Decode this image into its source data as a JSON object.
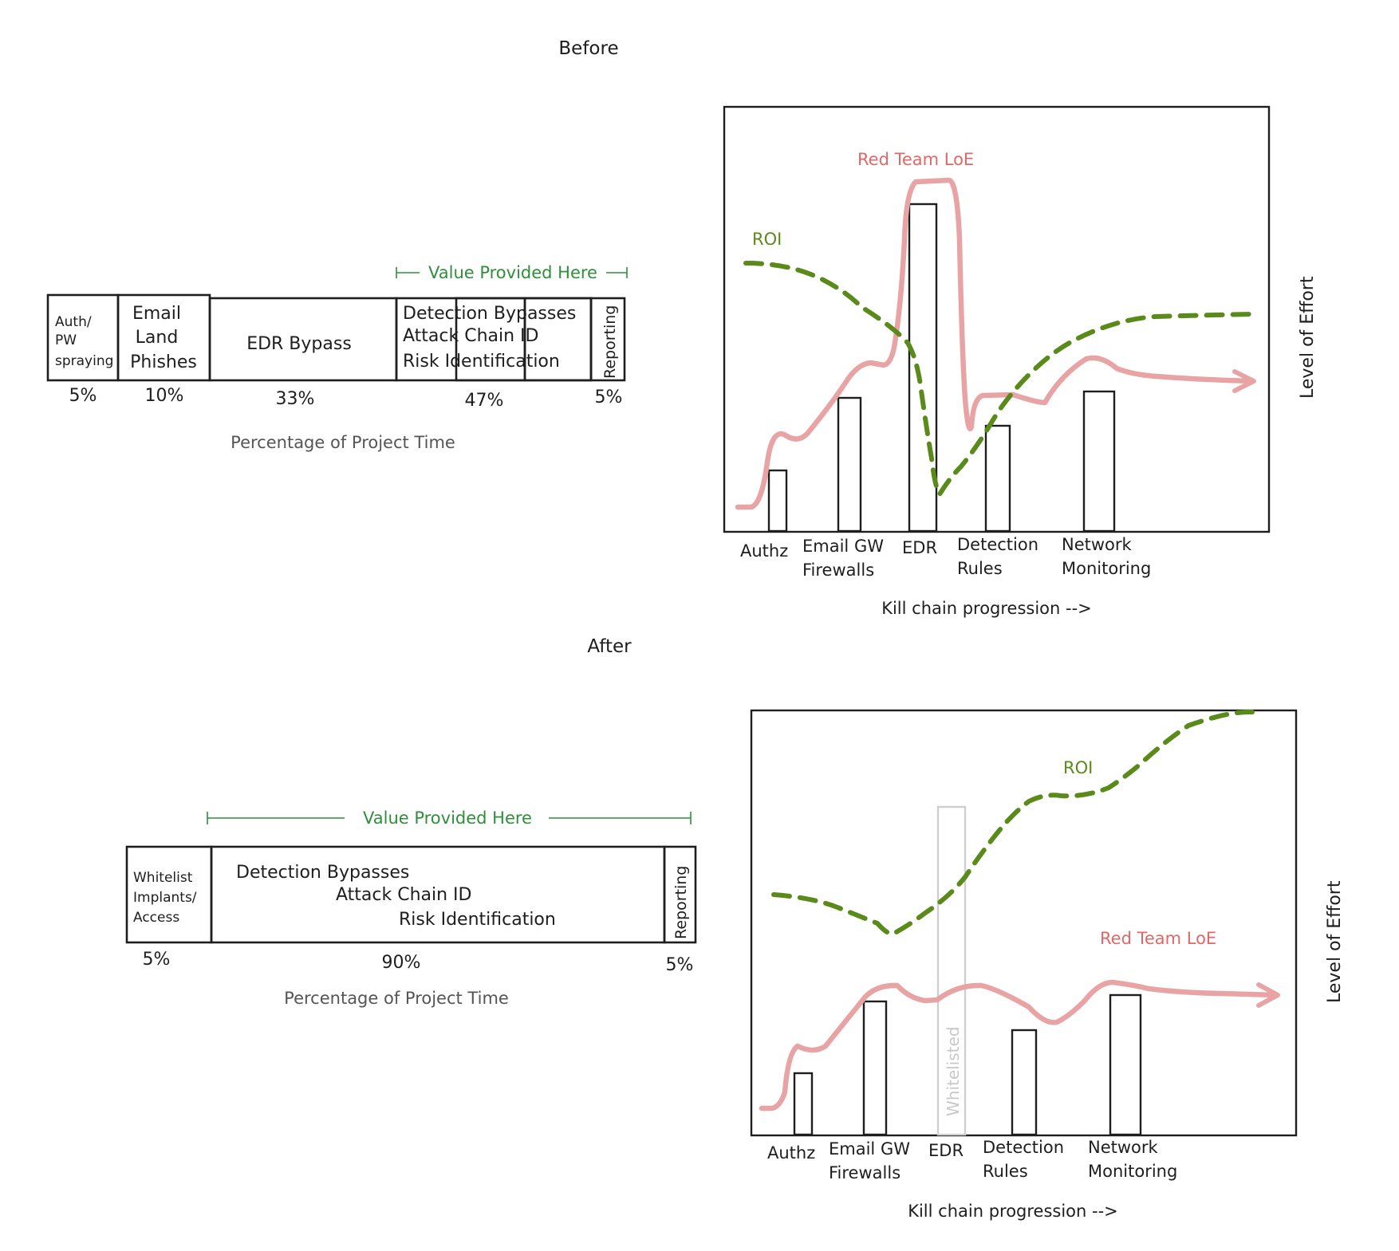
{
  "colors": {
    "ink": "#1e1e1e",
    "green": "#2f8f3a",
    "roi": "#5a8a1a",
    "loe": "#e8a4a4",
    "loe_text": "#e06868",
    "gray": "#555555",
    "ghost": "#c8c8c8"
  },
  "before": {
    "heading": "Before",
    "value_label": "Value Provided Here",
    "segments": [
      {
        "lines": [
          "Auth/",
          "PW",
          "spraying"
        ],
        "pct": "5%"
      },
      {
        "lines": [
          "Email",
          "Land",
          "Phishes"
        ],
        "pct": "10%"
      },
      {
        "lines": [
          "EDR Bypass"
        ],
        "pct": "33%"
      },
      {
        "lines": [
          "Detection Bypasses",
          "Attack Chain ID",
          "Risk Identification"
        ],
        "pct": "47%"
      },
      {
        "lines": [
          "Reporting"
        ],
        "pct": "5%"
      }
    ],
    "caption": "Percentage of Project Time",
    "chart": {
      "loe_label": "Red Team LoE",
      "roi_label": "ROI",
      "y_axis_label": "Level of Effort",
      "x_axis_label": "Kill chain progression  -->",
      "categories": [
        {
          "lines": [
            "Authz"
          ]
        },
        {
          "lines": [
            "Email GW",
            "Firewalls"
          ]
        },
        {
          "lines": [
            "EDR"
          ]
        },
        {
          "lines": [
            "Detection",
            "Rules"
          ]
        },
        {
          "lines": [
            "Network",
            "Monitoring"
          ]
        }
      ]
    }
  },
  "after": {
    "heading": "After",
    "value_label": "Value Provided Here",
    "segments": [
      {
        "lines": [
          "Whitelist",
          "Implants/",
          "Access"
        ],
        "pct": "5%"
      },
      {
        "lines": [
          "Detection Bypasses",
          "Attack Chain ID",
          "Risk Identification"
        ],
        "pct": "90%"
      },
      {
        "lines": [
          "Reporting"
        ],
        "pct": "5%"
      }
    ],
    "caption": "Percentage of Project Time",
    "chart": {
      "loe_label": "Red Team LoE",
      "roi_label": "ROI",
      "y_axis_label": "Level of Effort",
      "x_axis_label": "Kill chain progression  -->",
      "whitelisted_label": "Whitelisted",
      "categories": [
        {
          "lines": [
            "Authz"
          ]
        },
        {
          "lines": [
            "Email GW",
            "Firewalls"
          ]
        },
        {
          "lines": [
            "EDR"
          ]
        },
        {
          "lines": [
            "Detection",
            "Rules"
          ]
        },
        {
          "lines": [
            "Network",
            "Monitoring"
          ]
        }
      ]
    }
  }
}
